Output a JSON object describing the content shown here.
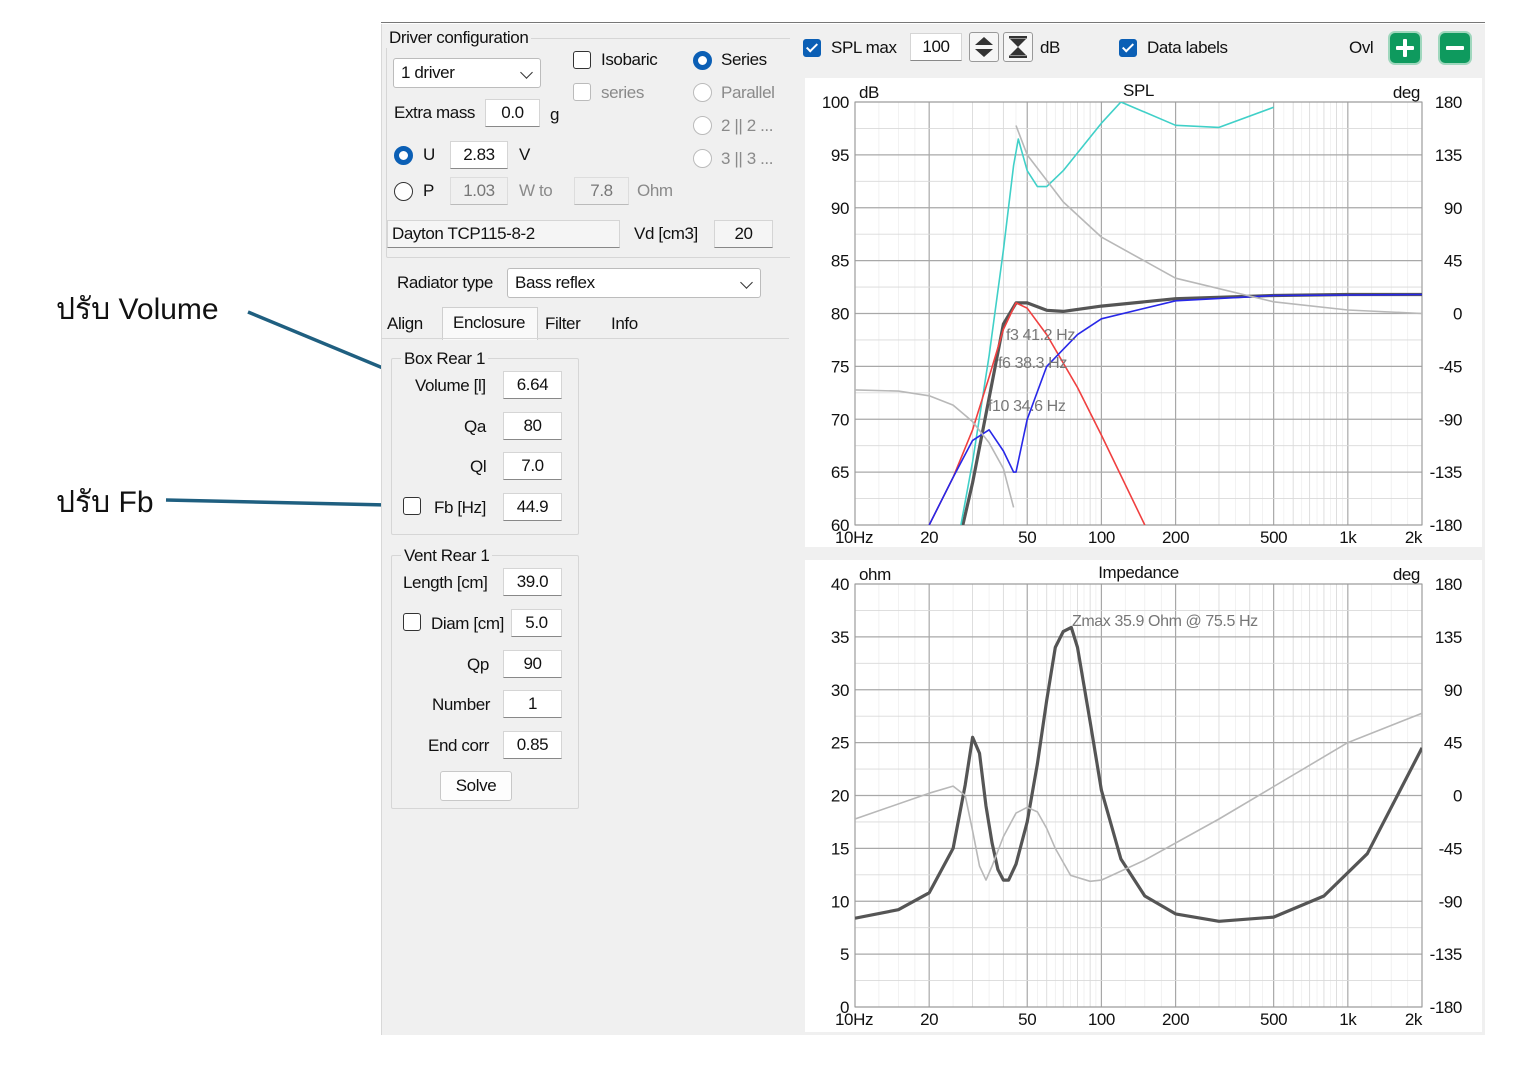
{
  "annotations": {
    "volume_note": "ปรับ Volume",
    "fb_note": "ปรับ Fb"
  },
  "driver_config": {
    "title": "Driver configuration",
    "driver_select": "1 driver",
    "isobaric_label": "Isobaric",
    "series_check_label": "series",
    "series_radio_label": "Series",
    "parallel_label": "Parallel",
    "opt_2_label": "2 || 2 ...",
    "opt_3_label": "3 || 3 ...",
    "extra_mass_label": "Extra mass",
    "extra_mass_value": "0.0",
    "extra_mass_unit": "g",
    "u_label": "U",
    "u_value": "2.83",
    "u_unit": "V",
    "p_label": "P",
    "p_value": "1.03",
    "p_unit": "W to",
    "ohm_value": "7.8",
    "ohm_unit": "Ohm",
    "driver_name": "Dayton TCP115-8-2",
    "vd_label": "Vd [cm3]",
    "vd_value": "20"
  },
  "radiator": {
    "label": "Radiator type",
    "value": "Bass reflex"
  },
  "tabs": [
    {
      "label": "Align"
    },
    {
      "label": "Enclosure"
    },
    {
      "label": "Filter"
    },
    {
      "label": "Info"
    }
  ],
  "box": {
    "title": "Box Rear 1",
    "volume_label": "Volume [l]",
    "volume_value": "6.64",
    "qa_label": "Qa",
    "qa_value": "80",
    "ql_label": "Ql",
    "ql_value": "7.0",
    "fb_label": "Fb [Hz]",
    "fb_value": "44.9"
  },
  "vent": {
    "title": "Vent Rear 1",
    "length_label": "Length [cm]",
    "length_value": "39.0",
    "diam_label": "Diam [cm]",
    "diam_value": "5.0",
    "qp_label": "Qp",
    "qp_value": "90",
    "number_label": "Number",
    "number_value": "1",
    "endcorr_label": "End corr",
    "endcorr_value": "0.85",
    "solve_label": "Solve"
  },
  "toolbar": {
    "spl_max_label": "SPL max",
    "spl_max_value": "100",
    "db_unit": "dB",
    "data_labels_label": "Data labels",
    "ovl_label": "Ovl"
  },
  "colors": {
    "accent": "#0b5fb5",
    "arrow": "#1f5f80",
    "zoom_button": "#0e9a5e",
    "curve_total": "#555555",
    "curve_cyan": "#40d0c8",
    "curve_red": "#f04040",
    "curve_blue": "#2828e8",
    "curve_phase": "#b8b8b8"
  },
  "chart_data": [
    {
      "type": "line",
      "title": "SPL",
      "ylabel": "dB",
      "y2label": "deg",
      "x_scale": "log",
      "xlim": [
        10,
        2000
      ],
      "ylim": [
        60,
        100
      ],
      "y2lim": [
        -180,
        180
      ],
      "x_ticks": [
        "10Hz",
        "20",
        "50",
        "100",
        "200",
        "500",
        "1k",
        "2k"
      ],
      "y_ticks": [
        "100",
        "95",
        "90",
        "85",
        "80",
        "75",
        "70",
        "65",
        "60"
      ],
      "y2_ticks": [
        "180",
        "135",
        "90",
        "45",
        "0",
        "-45",
        "-90",
        "-135",
        "-180"
      ],
      "grid": true,
      "annotations": [
        "f3 41.2 Hz",
        "f6 38.3 Hz",
        "f10 34.6 Hz"
      ],
      "series": [
        {
          "color": "#555555",
          "x": [
            25,
            30,
            35,
            40,
            45,
            50,
            60,
            70,
            100,
            200,
            500,
            1000,
            2000
          ],
          "y": [
            56,
            64,
            72,
            79,
            81,
            81,
            80.3,
            80.2,
            80.7,
            81.4,
            81.7,
            81.8,
            81.8
          ]
        },
        {
          "color": "#40d0c8",
          "x": [
            25,
            30,
            35,
            40,
            44,
            46,
            50,
            55,
            60,
            70,
            100,
            120,
            200,
            300,
            500
          ],
          "y": [
            56,
            66,
            76,
            86,
            94,
            96.5,
            93.5,
            92,
            92,
            93.5,
            98,
            100,
            97.8,
            97.6,
            99.5
          ]
        },
        {
          "color": "#f04040",
          "x": [
            20,
            25,
            30,
            35,
            40,
            45,
            50,
            60,
            80,
            100,
            150
          ],
          "y": [
            60,
            64.5,
            69,
            74,
            78.5,
            81,
            80.5,
            78,
            73,
            68.5,
            60
          ]
        },
        {
          "color": "#2828e8",
          "x": [
            20,
            25,
            30,
            35,
            40,
            44,
            45,
            50,
            60,
            80,
            100,
            200,
            500,
            2000
          ],
          "y": [
            60,
            64.5,
            68,
            69,
            67,
            65,
            65,
            70,
            75,
            78,
            79.5,
            81.2,
            81.7,
            81.8
          ]
        },
        {
          "color": "#b8b8b8",
          "axis": "y2",
          "x": [
            10,
            15,
            20,
            25,
            30,
            35,
            40,
            44,
            45,
            50,
            70,
            100,
            200,
            500,
            1000,
            2000
          ],
          "y": [
            -65,
            -66,
            -70,
            -78,
            -92,
            -110,
            -132,
            -165,
            160,
            135,
            95,
            65,
            30,
            10,
            3,
            0
          ]
        }
      ]
    },
    {
      "type": "line",
      "title": "Impedance",
      "ylabel": "ohm",
      "y2label": "deg",
      "x_scale": "log",
      "xlim": [
        10,
        2000
      ],
      "ylim": [
        0,
        40
      ],
      "y2lim": [
        -180,
        180
      ],
      "x_ticks": [
        "10Hz",
        "20",
        "50",
        "100",
        "200",
        "500",
        "1k",
        "2k"
      ],
      "y_ticks": [
        "40",
        "35",
        "30",
        "25",
        "20",
        "15",
        "10",
        "5",
        "0"
      ],
      "y2_ticks": [
        "180",
        "135",
        "90",
        "45",
        "0",
        "-45",
        "-90",
        "-135",
        "-180"
      ],
      "grid": true,
      "annotations": [
        "Zmax 35.9 Ohm @ 75.5 Hz"
      ],
      "series": [
        {
          "color": "#555555",
          "x": [
            10,
            15,
            20,
            25,
            28,
            30,
            32,
            34,
            36,
            38,
            40,
            42,
            45,
            50,
            55,
            60,
            65,
            70,
            75.5,
            80,
            90,
            100,
            120,
            150,
            200,
            300,
            500,
            800,
            1200,
            2000
          ],
          "y": [
            8.4,
            9.2,
            10.8,
            15,
            21,
            25.5,
            24,
            19,
            15.5,
            13,
            12,
            12,
            13.5,
            17.5,
            23,
            29,
            34,
            35.5,
            35.9,
            34,
            27,
            20.5,
            14,
            10.5,
            8.8,
            8.1,
            8.5,
            10.5,
            14.5,
            24.5
          ]
        },
        {
          "color": "#b8b8b8",
          "axis": "y2",
          "x": [
            10,
            20,
            25,
            28,
            30,
            32,
            34,
            36,
            40,
            45,
            50,
            55,
            60,
            65,
            75,
            90,
            100,
            150,
            300,
            1000,
            2000
          ],
          "y": [
            -20,
            2,
            8,
            0,
            -30,
            -60,
            -72,
            -60,
            -35,
            -15,
            -10,
            -14,
            -28,
            -45,
            -68,
            -73,
            -72,
            -55,
            -20,
            45,
            70
          ]
        }
      ]
    }
  ]
}
